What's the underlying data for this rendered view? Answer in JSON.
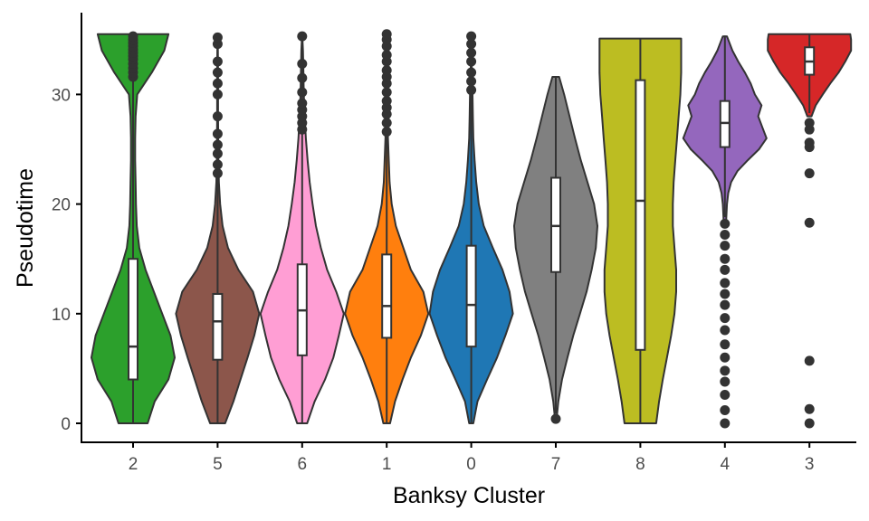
{
  "chart_data": {
    "type": "violin",
    "xlabel": "Banksy Cluster",
    "ylabel": "Pseudotime",
    "ylim": [
      0,
      36
    ],
    "yticks": [
      0,
      10,
      20,
      30
    ],
    "grid": false,
    "legend": "none",
    "categories": [
      "2",
      "5",
      "6",
      "1",
      "0",
      "7",
      "8",
      "4",
      "3"
    ],
    "series": [
      {
        "category": "2",
        "color": "#2ca02c",
        "min": 0,
        "q1": 4.0,
        "median": 7.0,
        "q3": 15.0,
        "max": 35.6,
        "whisker_low": 0,
        "whisker_high": 31.5,
        "density": [
          [
            0,
            0.35
          ],
          [
            2,
            0.52
          ],
          [
            4,
            0.85
          ],
          [
            6,
            1.0
          ],
          [
            8,
            0.9
          ],
          [
            10,
            0.7
          ],
          [
            12,
            0.5
          ],
          [
            14,
            0.3
          ],
          [
            16,
            0.15
          ],
          [
            18,
            0.09
          ],
          [
            20,
            0.07
          ],
          [
            22,
            0.06
          ],
          [
            24,
            0.05
          ],
          [
            26,
            0.05
          ],
          [
            28,
            0.06
          ],
          [
            30,
            0.1
          ],
          [
            32,
            0.45
          ],
          [
            34,
            0.75
          ],
          [
            35.5,
            0.85
          ]
        ],
        "outliers": [
          31.6,
          32.0,
          32.4,
          32.8,
          33.2,
          33.5,
          33.8,
          34.1,
          34.4,
          34.7,
          35.0,
          35.3
        ]
      },
      {
        "category": "5",
        "color": "#8c564b",
        "min": 0,
        "q1": 5.8,
        "median": 9.3,
        "q3": 11.8,
        "max": 35.2,
        "whisker_low": 0,
        "whisker_high": 22.7,
        "density": [
          [
            0,
            0.18
          ],
          [
            2,
            0.38
          ],
          [
            4,
            0.55
          ],
          [
            6,
            0.72
          ],
          [
            8,
            0.88
          ],
          [
            10,
            1.0
          ],
          [
            12,
            0.85
          ],
          [
            14,
            0.5
          ],
          [
            16,
            0.25
          ],
          [
            18,
            0.12
          ],
          [
            20,
            0.06
          ],
          [
            22,
            0.03
          ],
          [
            24,
            0.02
          ],
          [
            26,
            0.015
          ],
          [
            28,
            0.01
          ],
          [
            30,
            0.01
          ],
          [
            32,
            0.01
          ],
          [
            35.2,
            0.005
          ]
        ],
        "outliers": [
          22.8,
          23.6,
          24.6,
          25.4,
          26.4,
          28.0,
          30.0,
          31.0,
          32.0,
          33.0,
          34.6,
          35.2
        ]
      },
      {
        "category": "6",
        "color": "#ff9ed4",
        "min": 0,
        "q1": 6.2,
        "median": 10.3,
        "q3": 14.5,
        "max": 35.3,
        "whisker_low": 0,
        "whisker_high": 35.3,
        "density": [
          [
            0,
            0.12
          ],
          [
            2,
            0.3
          ],
          [
            4,
            0.55
          ],
          [
            6,
            0.75
          ],
          [
            8,
            0.88
          ],
          [
            10,
            1.0
          ],
          [
            12,
            0.82
          ],
          [
            14,
            0.6
          ],
          [
            16,
            0.45
          ],
          [
            18,
            0.33
          ],
          [
            20,
            0.25
          ],
          [
            22,
            0.18
          ],
          [
            24,
            0.13
          ],
          [
            26,
            0.09
          ],
          [
            28,
            0.06
          ],
          [
            30,
            0.04
          ],
          [
            32,
            0.03
          ],
          [
            34,
            0.02
          ],
          [
            35.3,
            0.005
          ]
        ],
        "outliers": [
          26.8,
          27.4,
          28.0,
          28.6,
          29.2,
          30.2,
          31.5,
          32.8,
          35.3
        ]
      },
      {
        "category": "1",
        "color": "#ff7f0e",
        "min": 0,
        "q1": 7.8,
        "median": 10.7,
        "q3": 15.4,
        "max": 35.5,
        "whisker_low": 0,
        "whisker_high": 26.5,
        "density": [
          [
            0,
            0.08
          ],
          [
            2,
            0.2
          ],
          [
            4,
            0.38
          ],
          [
            6,
            0.58
          ],
          [
            8,
            0.82
          ],
          [
            10,
            1.0
          ],
          [
            12,
            0.88
          ],
          [
            14,
            0.58
          ],
          [
            16,
            0.4
          ],
          [
            18,
            0.22
          ],
          [
            20,
            0.12
          ],
          [
            22,
            0.07
          ],
          [
            24,
            0.05
          ],
          [
            26,
            0.03
          ],
          [
            28,
            0.02
          ],
          [
            30,
            0.015
          ],
          [
            35.5,
            0.005
          ]
        ],
        "outliers": [
          26.6,
          27.4,
          28.2,
          28.8,
          29.4,
          30.2,
          31.0,
          31.6,
          32.2,
          33.0,
          33.6,
          34.4,
          35.0,
          35.5
        ]
      },
      {
        "category": "0",
        "color": "#1f77b4",
        "min": 0,
        "q1": 7.0,
        "median": 10.8,
        "q3": 16.2,
        "max": 35.3,
        "whisker_low": 0,
        "whisker_high": 30.0,
        "density": [
          [
            0,
            0.05
          ],
          [
            2,
            0.15
          ],
          [
            4,
            0.38
          ],
          [
            6,
            0.62
          ],
          [
            8,
            0.82
          ],
          [
            10,
            1.0
          ],
          [
            12,
            0.92
          ],
          [
            14,
            0.75
          ],
          [
            16,
            0.52
          ],
          [
            18,
            0.3
          ],
          [
            20,
            0.18
          ],
          [
            22,
            0.12
          ],
          [
            24,
            0.08
          ],
          [
            26,
            0.05
          ],
          [
            28,
            0.04
          ],
          [
            30,
            0.03
          ],
          [
            32,
            0.015
          ],
          [
            35.3,
            0.005
          ]
        ],
        "outliers": [
          30.4,
          31.2,
          32.0,
          33.0,
          33.8,
          34.6,
          35.3
        ]
      },
      {
        "category": "7",
        "color": "#808080",
        "min": 0.4,
        "q1": 13.8,
        "median": 18.0,
        "q3": 22.4,
        "max": 31.6,
        "whisker_low": 0.9,
        "whisker_high": 31.6,
        "density": [
          [
            0.4,
            0.02
          ],
          [
            2,
            0.06
          ],
          [
            4,
            0.15
          ],
          [
            6,
            0.28
          ],
          [
            8,
            0.42
          ],
          [
            10,
            0.58
          ],
          [
            12,
            0.74
          ],
          [
            14,
            0.86
          ],
          [
            16,
            0.96
          ],
          [
            18,
            1.0
          ],
          [
            20,
            0.92
          ],
          [
            22,
            0.76
          ],
          [
            24,
            0.6
          ],
          [
            26,
            0.46
          ],
          [
            28,
            0.33
          ],
          [
            30,
            0.2
          ],
          [
            31.6,
            0.08
          ]
        ],
        "outliers": [
          0.4
        ]
      },
      {
        "category": "8",
        "color": "#bcbd22",
        "min": 0,
        "q1": 6.7,
        "median": 20.3,
        "q3": 31.3,
        "max": 35.1,
        "whisker_low": 0,
        "whisker_high": 35.1,
        "density": [
          [
            0,
            0.38
          ],
          [
            2,
            0.45
          ],
          [
            4,
            0.54
          ],
          [
            6,
            0.64
          ],
          [
            8,
            0.74
          ],
          [
            10,
            0.82
          ],
          [
            12,
            0.86
          ],
          [
            14,
            0.86
          ],
          [
            16,
            0.82
          ],
          [
            18,
            0.78
          ],
          [
            20,
            0.78
          ],
          [
            22,
            0.8
          ],
          [
            24,
            0.84
          ],
          [
            26,
            0.88
          ],
          [
            28,
            0.92
          ],
          [
            30,
            0.96
          ],
          [
            32,
            0.98
          ],
          [
            34,
            0.98
          ],
          [
            35.1,
            0.98
          ]
        ],
        "outliers": []
      },
      {
        "category": "4",
        "color": "#9467bd",
        "min": 0,
        "q1": 25.2,
        "median": 27.4,
        "q3": 29.4,
        "max": 35.3,
        "whisker_low": 18.8,
        "whisker_high": 35.3,
        "density": [
          [
            18.5,
            0.03
          ],
          [
            20,
            0.05
          ],
          [
            21,
            0.08
          ],
          [
            22,
            0.15
          ],
          [
            23,
            0.3
          ],
          [
            24,
            0.55
          ],
          [
            25,
            0.82
          ],
          [
            26,
            1.0
          ],
          [
            27,
            0.9
          ],
          [
            28,
            0.8
          ],
          [
            29,
            0.88
          ],
          [
            30,
            0.72
          ],
          [
            31,
            0.62
          ],
          [
            32,
            0.48
          ],
          [
            33,
            0.32
          ],
          [
            34,
            0.18
          ],
          [
            35.3,
            0.05
          ]
        ],
        "outliers": [
          0,
          1.2,
          2.6,
          3.8,
          4.8,
          6.0,
          7.2,
          8.5,
          9.6,
          10.8,
          11.8,
          12.8,
          14.0,
          15.0,
          16.2,
          17.2,
          18.2
        ]
      },
      {
        "category": "3",
        "color": "#d62728",
        "min": 0,
        "q1": 31.8,
        "median": 33.0,
        "q3": 34.3,
        "max": 35.5,
        "whisker_low": 28.3,
        "whisker_high": 35.5,
        "density": [
          [
            28,
            0.05
          ],
          [
            29,
            0.15
          ],
          [
            30,
            0.32
          ],
          [
            31,
            0.5
          ],
          [
            32,
            0.7
          ],
          [
            33,
            0.86
          ],
          [
            34,
            1.0
          ],
          [
            35,
            1.0
          ],
          [
            35.5,
            0.98
          ]
        ],
        "outliers": [
          0,
          1.3,
          5.7,
          18.3,
          22.8,
          25.2,
          25.6,
          26.8,
          27.4
        ]
      }
    ]
  }
}
